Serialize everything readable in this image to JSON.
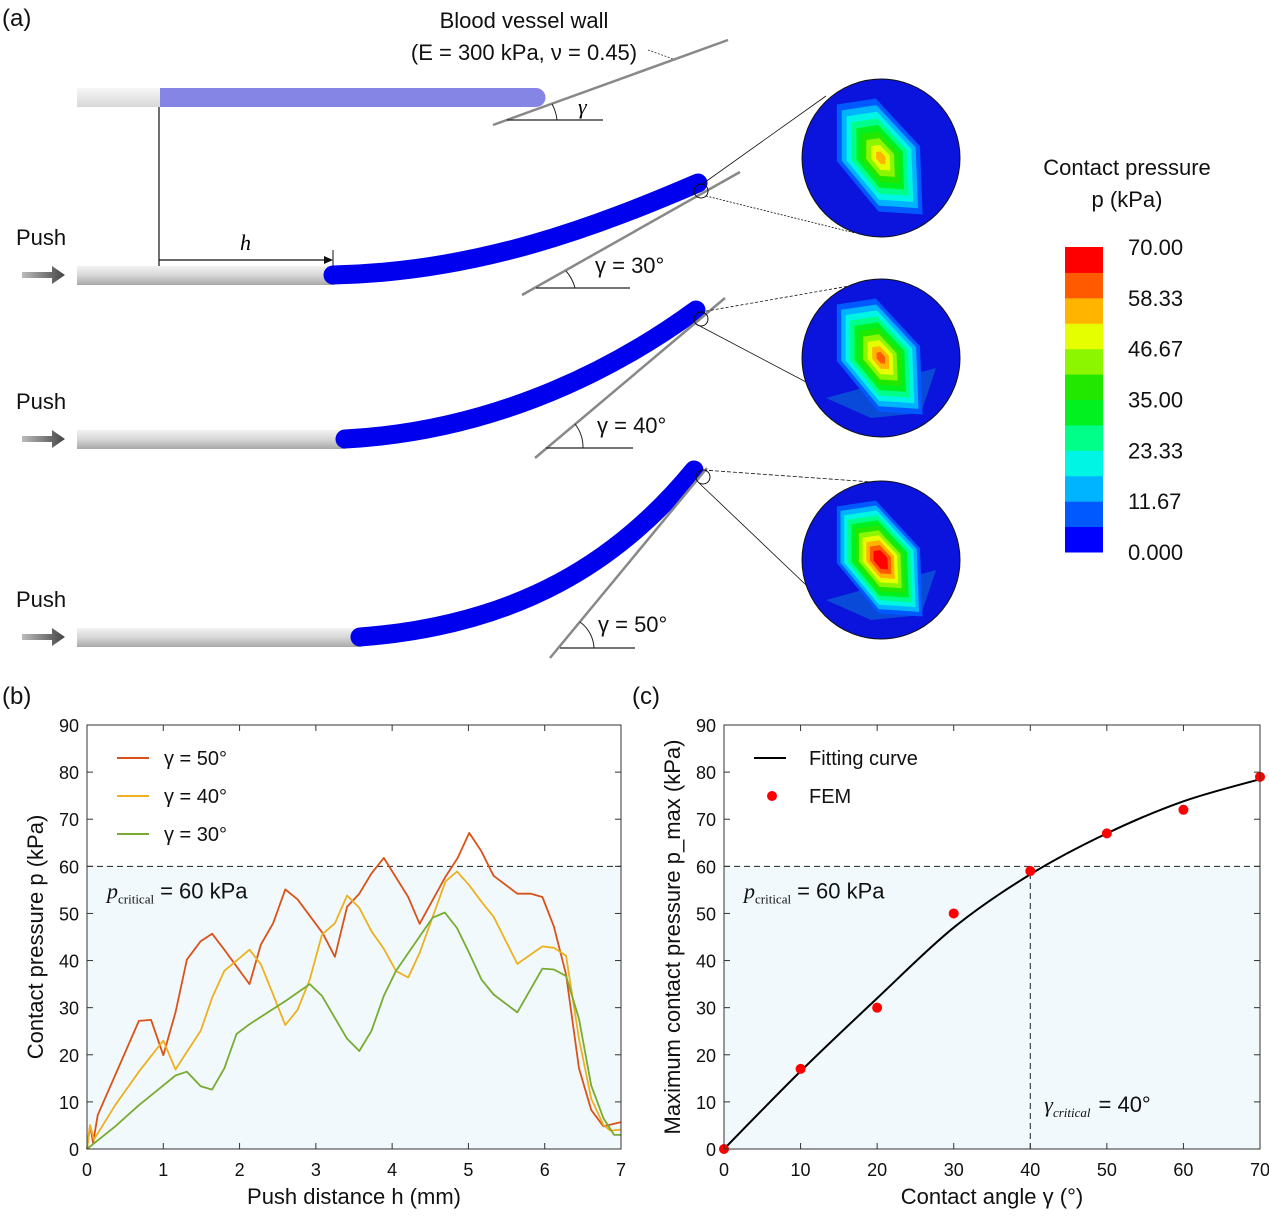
{
  "panel_labels": {
    "a": "(a)",
    "b": "(b)",
    "c": "(c)"
  },
  "diagram": {
    "wall_title": "Blood vessel wall",
    "wall_params": "(E = 300 kPa, ν = 0.45)",
    "gamma_symbol": "γ",
    "h_symbol": "h",
    "push_labels": [
      "Push",
      "Push",
      "Push"
    ],
    "angle_labels": [
      "γ = 30°",
      "γ = 40°",
      "γ = 50°"
    ],
    "colors": {
      "catheter_tip": "#0000ee",
      "catheter_tip_initial": "#8585e6",
      "catheter_body": "#cccccc"
    }
  },
  "colorbar": {
    "title": "Contact pressure",
    "unit": "p (kPa)",
    "labels": [
      "70.00",
      "58.33",
      "46.67",
      "35.00",
      "23.33",
      "11.67",
      "0.000"
    ],
    "colors_bottom_to_top": [
      "#0000ff",
      "#0058ff",
      "#00b4ff",
      "#00f5e4",
      "#00ff88",
      "#00f020",
      "#22e800",
      "#8cf500",
      "#e6ff00",
      "#ffb400",
      "#ff5a00",
      "#ff0000"
    ]
  },
  "chart_data": [
    {
      "type": "line",
      "panel": "(b)",
      "xlabel": "Push distance h (mm)",
      "ylabel": "Contact pressure p (kPa)",
      "xlim": [
        0,
        7
      ],
      "ylim": [
        0,
        90
      ],
      "xticks": [
        0,
        1,
        2,
        3,
        4,
        5,
        6,
        7
      ],
      "yticks": [
        0,
        10,
        20,
        30,
        40,
        50,
        60,
        70,
        80,
        90
      ],
      "grid": false,
      "legend": "top-left",
      "threshold": {
        "value": 60,
        "symbol": "p",
        "subscript": "critical",
        "text": "= 60 kPa"
      },
      "series": [
        {
          "name": "γ = 50°",
          "color": "#d95319",
          "x": [
            0,
            0.04,
            0.08,
            0.14,
            0.68,
            0.84,
            1.0,
            1.16,
            1.31,
            1.49,
            1.64,
            1.8,
            2.13,
            2.28,
            2.44,
            2.6,
            2.76,
            3.09,
            3.25,
            3.41,
            3.57,
            3.73,
            3.89,
            4.21,
            4.36,
            4.7,
            4.86,
            5.01,
            5.17,
            5.33,
            5.64,
            5.82,
            5.97,
            6.12,
            6.28,
            6.45,
            6.61,
            6.77,
            7.0
          ],
          "y": [
            0,
            5,
            1.3,
            7.2,
            27.2,
            27.4,
            19.9,
            29,
            40.2,
            44.1,
            45.7,
            42.3,
            35,
            43.4,
            47.9,
            55.1,
            53,
            45.8,
            40.8,
            51.4,
            54.2,
            58.5,
            61.8,
            53.5,
            47.8,
            57.8,
            61.8,
            67.1,
            63.2,
            58,
            54.2,
            54.2,
            53.5,
            47.2,
            37,
            17.1,
            8.3,
            4.8,
            5.7
          ]
        },
        {
          "name": "γ = 40°",
          "color": "#edb120",
          "x": [
            0,
            0.04,
            0.09,
            0.37,
            0.68,
            1.0,
            1.16,
            1.49,
            1.64,
            1.8,
            2.13,
            2.28,
            2.44,
            2.6,
            2.76,
            2.92,
            3.08,
            3.25,
            3.41,
            3.57,
            3.73,
            3.89,
            4.05,
            4.21,
            4.36,
            4.7,
            4.85,
            5.01,
            5.17,
            5.33,
            5.64,
            5.97,
            6.12,
            6.28,
            6.45,
            6.61,
            6.77,
            6.86,
            7.0
          ],
          "y": [
            0,
            5.1,
            2,
            9.3,
            16.4,
            23,
            16.9,
            25.1,
            32.1,
            37.8,
            42.3,
            39.2,
            32.8,
            26.3,
            29.5,
            36,
            45.5,
            47.9,
            53.8,
            51.2,
            46.2,
            42.5,
            37.8,
            36.4,
            41.6,
            56.8,
            58.9,
            56,
            52.5,
            49.3,
            39.3,
            43,
            42.7,
            41,
            23.4,
            10.7,
            5.1,
            3.9,
            4.1
          ]
        },
        {
          "name": "γ = 30°",
          "color": "#77ac30",
          "x": [
            0,
            0.37,
            0.68,
            1.0,
            1.16,
            1.31,
            1.49,
            1.64,
            1.8,
            1.96,
            2.13,
            2.6,
            2.92,
            3.08,
            3.41,
            3.57,
            3.73,
            3.89,
            4.05,
            4.36,
            4.53,
            4.69,
            4.85,
            5.01,
            5.17,
            5.33,
            5.64,
            5.97,
            6.12,
            6.28,
            6.45,
            6.61,
            6.77,
            6.91,
            7.0
          ],
          "y": [
            0,
            4.8,
            9.3,
            13.5,
            15.6,
            16.4,
            13.3,
            12.6,
            17.1,
            24.4,
            26.5,
            31.4,
            35,
            32.5,
            23.4,
            20.8,
            25.1,
            32.5,
            37.8,
            45.1,
            49.1,
            50.2,
            46.9,
            41.6,
            36,
            32.8,
            29,
            38.3,
            38.1,
            36.7,
            27.6,
            13.5,
            6.5,
            3,
            3
          ]
        }
      ]
    },
    {
      "type": "scatter",
      "panel": "(c)",
      "xlabel": "Contact angle γ (°)",
      "ylabel": "Maximum contact pressure p_max (kPa)",
      "xlim": [
        0,
        70
      ],
      "ylim": [
        0,
        90
      ],
      "xticks": [
        0,
        10,
        20,
        30,
        40,
        50,
        60,
        70
      ],
      "yticks": [
        0,
        10,
        20,
        30,
        40,
        50,
        60,
        70,
        80,
        90
      ],
      "grid": false,
      "legend": "top-left",
      "threshold": {
        "value": 60,
        "symbol": "p",
        "subscript": "critical",
        "text": "= 60 kPa"
      },
      "critical_angle": {
        "value": 40,
        "symbol": "γ",
        "subscript": "critical",
        "text": "= 40°"
      },
      "series": [
        {
          "name": "Fitting curve",
          "kind": "line",
          "color": "#000000",
          "x": [
            0,
            10,
            20,
            30,
            40,
            50,
            60,
            70
          ],
          "y": [
            0,
            16.5,
            32,
            47,
            58.3,
            67,
            73.8,
            78.5
          ]
        },
        {
          "name": "FEM",
          "kind": "points",
          "color": "#ff0000",
          "x": [
            0,
            10,
            20,
            30,
            40,
            50,
            60,
            70
          ],
          "y": [
            0,
            17,
            30,
            50,
            59,
            67,
            72,
            79
          ]
        }
      ]
    }
  ]
}
